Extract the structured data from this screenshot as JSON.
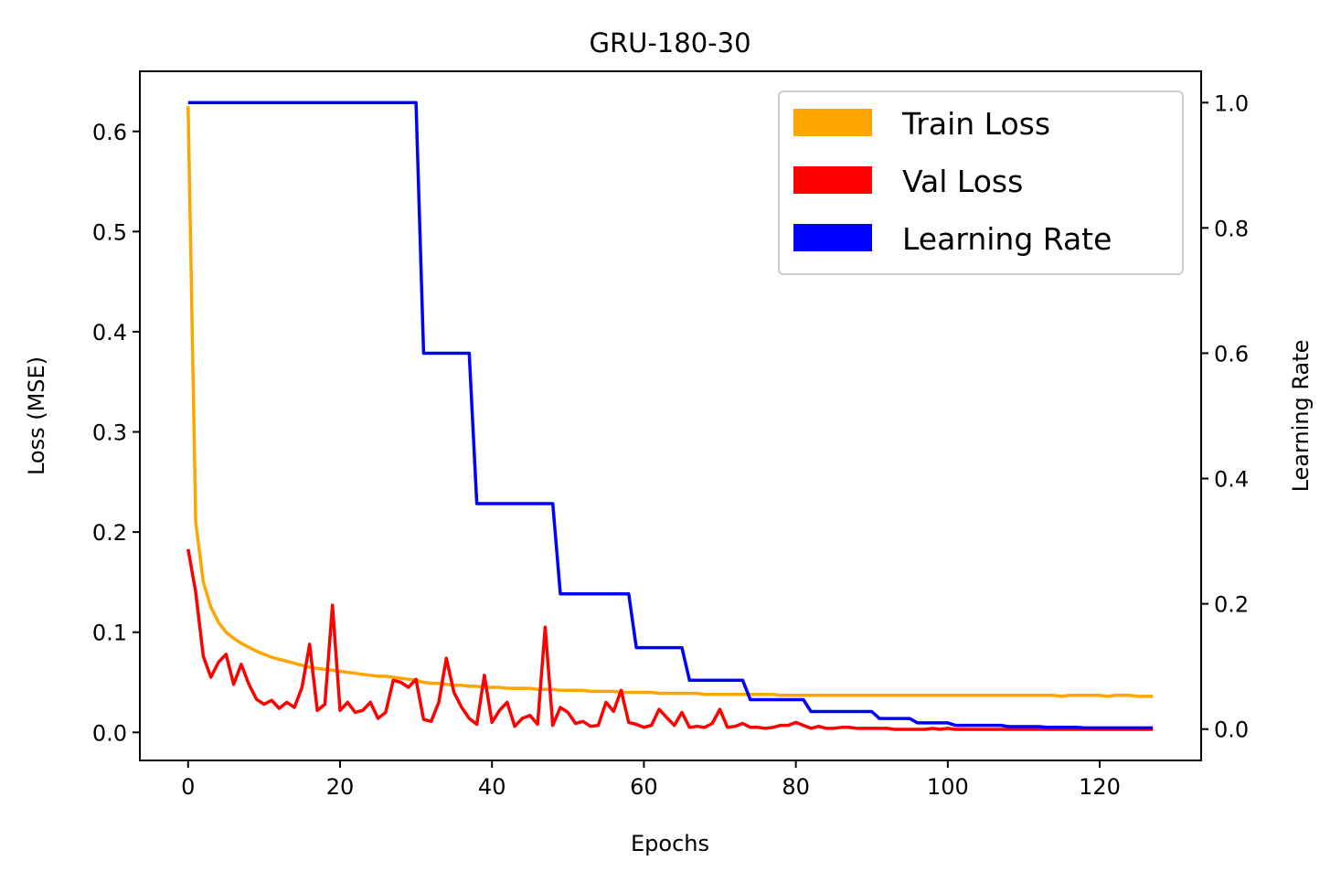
{
  "chart_data": {
    "type": "line",
    "title": "GRU-180-30",
    "xlabel": "Epochs",
    "ylabel": "Loss (MSE)",
    "y2label": "Learning Rate",
    "xlim": [
      -6.35,
      133.35
    ],
    "ylim": [
      -0.028,
      0.66
    ],
    "y2lim": [
      -0.05,
      1.05
    ],
    "x_ticks": [
      0,
      20,
      40,
      60,
      80,
      100,
      120
    ],
    "x_tick_labels": [
      "0",
      "20",
      "40",
      "60",
      "80",
      "100",
      "120"
    ],
    "y_ticks": [
      0.0,
      0.1,
      0.2,
      0.3,
      0.4,
      0.5,
      0.6
    ],
    "y_tick_labels": [
      "0.0",
      "0.1",
      "0.2",
      "0.3",
      "0.4",
      "0.5",
      "0.6"
    ],
    "y2_ticks": [
      0.0,
      0.2,
      0.4,
      0.6,
      0.8,
      1.0
    ],
    "y2_tick_labels": [
      "0.0",
      "0.2",
      "0.4",
      "0.6",
      "0.8",
      "1.0"
    ],
    "grid": false,
    "legend_position": "top-right",
    "legend": [
      {
        "label": "Train Loss",
        "color": "#FFA500"
      },
      {
        "label": "Val Loss",
        "color": "#FF0000"
      },
      {
        "label": "Learning Rate",
        "color": "#0000FF"
      }
    ],
    "series": [
      {
        "name": "Train Loss",
        "axis": "left",
        "color": "#FFA500",
        "x": [
          0,
          1,
          2,
          3,
          4,
          5,
          6,
          7,
          8,
          9,
          10,
          11,
          12,
          13,
          14,
          15,
          16,
          17,
          18,
          19,
          20,
          21,
          22,
          23,
          24,
          25,
          26,
          27,
          28,
          29,
          30,
          31,
          32,
          33,
          34,
          35,
          36,
          37,
          38,
          39,
          40,
          41,
          42,
          43,
          44,
          45,
          46,
          47,
          48,
          49,
          50,
          51,
          52,
          53,
          54,
          55,
          56,
          57,
          58,
          59,
          60,
          61,
          62,
          63,
          64,
          65,
          66,
          67,
          68,
          69,
          70,
          71,
          72,
          73,
          74,
          75,
          76,
          77,
          78,
          79,
          80,
          81,
          82,
          83,
          84,
          85,
          86,
          87,
          88,
          89,
          90,
          91,
          92,
          93,
          94,
          95,
          96,
          97,
          98,
          99,
          100,
          101,
          102,
          103,
          104,
          105,
          106,
          107,
          108,
          109,
          110,
          111,
          112,
          113,
          114,
          115,
          116,
          117,
          118,
          119,
          120,
          121,
          122,
          123,
          124,
          125,
          126,
          127
        ],
        "values": [
          0.625,
          0.21,
          0.15,
          0.125,
          0.11,
          0.1,
          0.094,
          0.089,
          0.085,
          0.081,
          0.078,
          0.075,
          0.073,
          0.071,
          0.069,
          0.067,
          0.065,
          0.064,
          0.063,
          0.062,
          0.061,
          0.06,
          0.059,
          0.058,
          0.057,
          0.056,
          0.056,
          0.055,
          0.054,
          0.053,
          0.052,
          0.05,
          0.049,
          0.049,
          0.048,
          0.047,
          0.047,
          0.046,
          0.046,
          0.045,
          0.045,
          0.045,
          0.044,
          0.044,
          0.044,
          0.044,
          0.043,
          0.043,
          0.043,
          0.042,
          0.042,
          0.042,
          0.042,
          0.041,
          0.041,
          0.041,
          0.041,
          0.04,
          0.04,
          0.04,
          0.04,
          0.04,
          0.039,
          0.039,
          0.039,
          0.039,
          0.039,
          0.039,
          0.038,
          0.038,
          0.038,
          0.038,
          0.038,
          0.038,
          0.038,
          0.038,
          0.038,
          0.038,
          0.037,
          0.037,
          0.037,
          0.037,
          0.037,
          0.037,
          0.037,
          0.037,
          0.037,
          0.037,
          0.037,
          0.037,
          0.037,
          0.037,
          0.037,
          0.037,
          0.037,
          0.037,
          0.037,
          0.037,
          0.037,
          0.037,
          0.037,
          0.037,
          0.037,
          0.037,
          0.037,
          0.037,
          0.037,
          0.037,
          0.037,
          0.037,
          0.037,
          0.037,
          0.037,
          0.037,
          0.037,
          0.036,
          0.037,
          0.037,
          0.037,
          0.037,
          0.037,
          0.036,
          0.037,
          0.037,
          0.037,
          0.036,
          0.036,
          0.036
        ]
      },
      {
        "name": "Val Loss",
        "axis": "left",
        "color": "#FF0000",
        "x": [
          0,
          1,
          2,
          3,
          4,
          5,
          6,
          7,
          8,
          9,
          10,
          11,
          12,
          13,
          14,
          15,
          16,
          17,
          18,
          19,
          20,
          21,
          22,
          23,
          24,
          25,
          26,
          27,
          28,
          29,
          30,
          31,
          32,
          33,
          34,
          35,
          36,
          37,
          38,
          39,
          40,
          41,
          42,
          43,
          44,
          45,
          46,
          47,
          48,
          49,
          50,
          51,
          52,
          53,
          54,
          55,
          56,
          57,
          58,
          59,
          60,
          61,
          62,
          63,
          64,
          65,
          66,
          67,
          68,
          69,
          70,
          71,
          72,
          73,
          74,
          75,
          76,
          77,
          78,
          79,
          80,
          81,
          82,
          83,
          84,
          85,
          86,
          87,
          88,
          89,
          90,
          91,
          92,
          93,
          94,
          95,
          96,
          97,
          98,
          99,
          100,
          101,
          102,
          103,
          104,
          105,
          106,
          107,
          108,
          109,
          110,
          111,
          112,
          113,
          114,
          115,
          116,
          117,
          118,
          119,
          120,
          121,
          122,
          123,
          124,
          125,
          126,
          127
        ],
        "values": [
          0.183,
          0.14,
          0.076,
          0.055,
          0.07,
          0.078,
          0.048,
          0.068,
          0.048,
          0.033,
          0.028,
          0.032,
          0.024,
          0.03,
          0.025,
          0.045,
          0.088,
          0.022,
          0.028,
          0.127,
          0.022,
          0.03,
          0.02,
          0.022,
          0.03,
          0.014,
          0.02,
          0.052,
          0.05,
          0.045,
          0.053,
          0.013,
          0.011,
          0.03,
          0.074,
          0.04,
          0.025,
          0.014,
          0.008,
          0.057,
          0.01,
          0.022,
          0.03,
          0.006,
          0.014,
          0.017,
          0.008,
          0.105,
          0.007,
          0.025,
          0.02,
          0.009,
          0.011,
          0.006,
          0.007,
          0.03,
          0.021,
          0.042,
          0.01,
          0.008,
          0.005,
          0.007,
          0.023,
          0.015,
          0.007,
          0.02,
          0.005,
          0.006,
          0.005,
          0.009,
          0.023,
          0.005,
          0.006,
          0.009,
          0.005,
          0.005,
          0.004,
          0.005,
          0.007,
          0.007,
          0.01,
          0.007,
          0.004,
          0.006,
          0.004,
          0.004,
          0.005,
          0.005,
          0.004,
          0.004,
          0.004,
          0.004,
          0.004,
          0.003,
          0.003,
          0.003,
          0.003,
          0.003,
          0.004,
          0.003,
          0.004,
          0.003,
          0.003,
          0.003,
          0.003,
          0.003,
          0.003,
          0.003,
          0.003,
          0.003,
          0.003,
          0.003,
          0.003,
          0.003,
          0.003,
          0.003,
          0.003,
          0.003,
          0.003,
          0.003,
          0.003,
          0.003,
          0.003,
          0.003,
          0.003,
          0.003,
          0.003,
          0.003
        ]
      },
      {
        "name": "Learning Rate",
        "axis": "right",
        "color": "#0000FF",
        "x": [
          0,
          1,
          2,
          3,
          4,
          5,
          6,
          7,
          8,
          9,
          10,
          11,
          12,
          13,
          14,
          15,
          16,
          17,
          18,
          19,
          20,
          21,
          22,
          23,
          24,
          25,
          26,
          27,
          28,
          29,
          30,
          31,
          32,
          33,
          34,
          35,
          36,
          37,
          38,
          39,
          40,
          41,
          42,
          43,
          44,
          45,
          46,
          47,
          48,
          49,
          50,
          51,
          52,
          53,
          54,
          55,
          56,
          57,
          58,
          59,
          60,
          61,
          62,
          63,
          64,
          65,
          66,
          67,
          68,
          69,
          70,
          71,
          72,
          73,
          74,
          75,
          76,
          77,
          78,
          79,
          80,
          81,
          82,
          83,
          84,
          85,
          86,
          87,
          88,
          89,
          90,
          91,
          92,
          93,
          94,
          95,
          96,
          97,
          98,
          99,
          100,
          101,
          102,
          103,
          104,
          105,
          106,
          107,
          108,
          109,
          110,
          111,
          112,
          113,
          114,
          115,
          116,
          117,
          118,
          119,
          120,
          121,
          122,
          123,
          124,
          125,
          126,
          127
        ],
        "values": [
          1.0,
          1.0,
          1.0,
          1.0,
          1.0,
          1.0,
          1.0,
          1.0,
          1.0,
          1.0,
          1.0,
          1.0,
          1.0,
          1.0,
          1.0,
          1.0,
          1.0,
          1.0,
          1.0,
          1.0,
          1.0,
          1.0,
          1.0,
          1.0,
          1.0,
          1.0,
          1.0,
          1.0,
          1.0,
          1.0,
          1.0,
          0.6,
          0.6,
          0.6,
          0.6,
          0.6,
          0.6,
          0.6,
          0.36,
          0.36,
          0.36,
          0.36,
          0.36,
          0.36,
          0.36,
          0.36,
          0.36,
          0.36,
          0.36,
          0.216,
          0.216,
          0.216,
          0.216,
          0.216,
          0.216,
          0.216,
          0.216,
          0.216,
          0.216,
          0.13,
          0.13,
          0.13,
          0.13,
          0.13,
          0.13,
          0.13,
          0.078,
          0.078,
          0.078,
          0.078,
          0.078,
          0.078,
          0.078,
          0.078,
          0.047,
          0.047,
          0.047,
          0.047,
          0.047,
          0.047,
          0.047,
          0.047,
          0.028,
          0.028,
          0.028,
          0.028,
          0.028,
          0.028,
          0.028,
          0.028,
          0.028,
          0.017,
          0.017,
          0.017,
          0.017,
          0.017,
          0.01,
          0.01,
          0.01,
          0.01,
          0.01,
          0.006,
          0.006,
          0.006,
          0.006,
          0.006,
          0.006,
          0.006,
          0.004,
          0.004,
          0.004,
          0.004,
          0.004,
          0.003,
          0.003,
          0.003,
          0.003,
          0.003,
          0.002,
          0.002,
          0.002,
          0.002,
          0.002,
          0.002,
          0.002,
          0.002,
          0.002,
          0.002
        ]
      }
    ]
  }
}
